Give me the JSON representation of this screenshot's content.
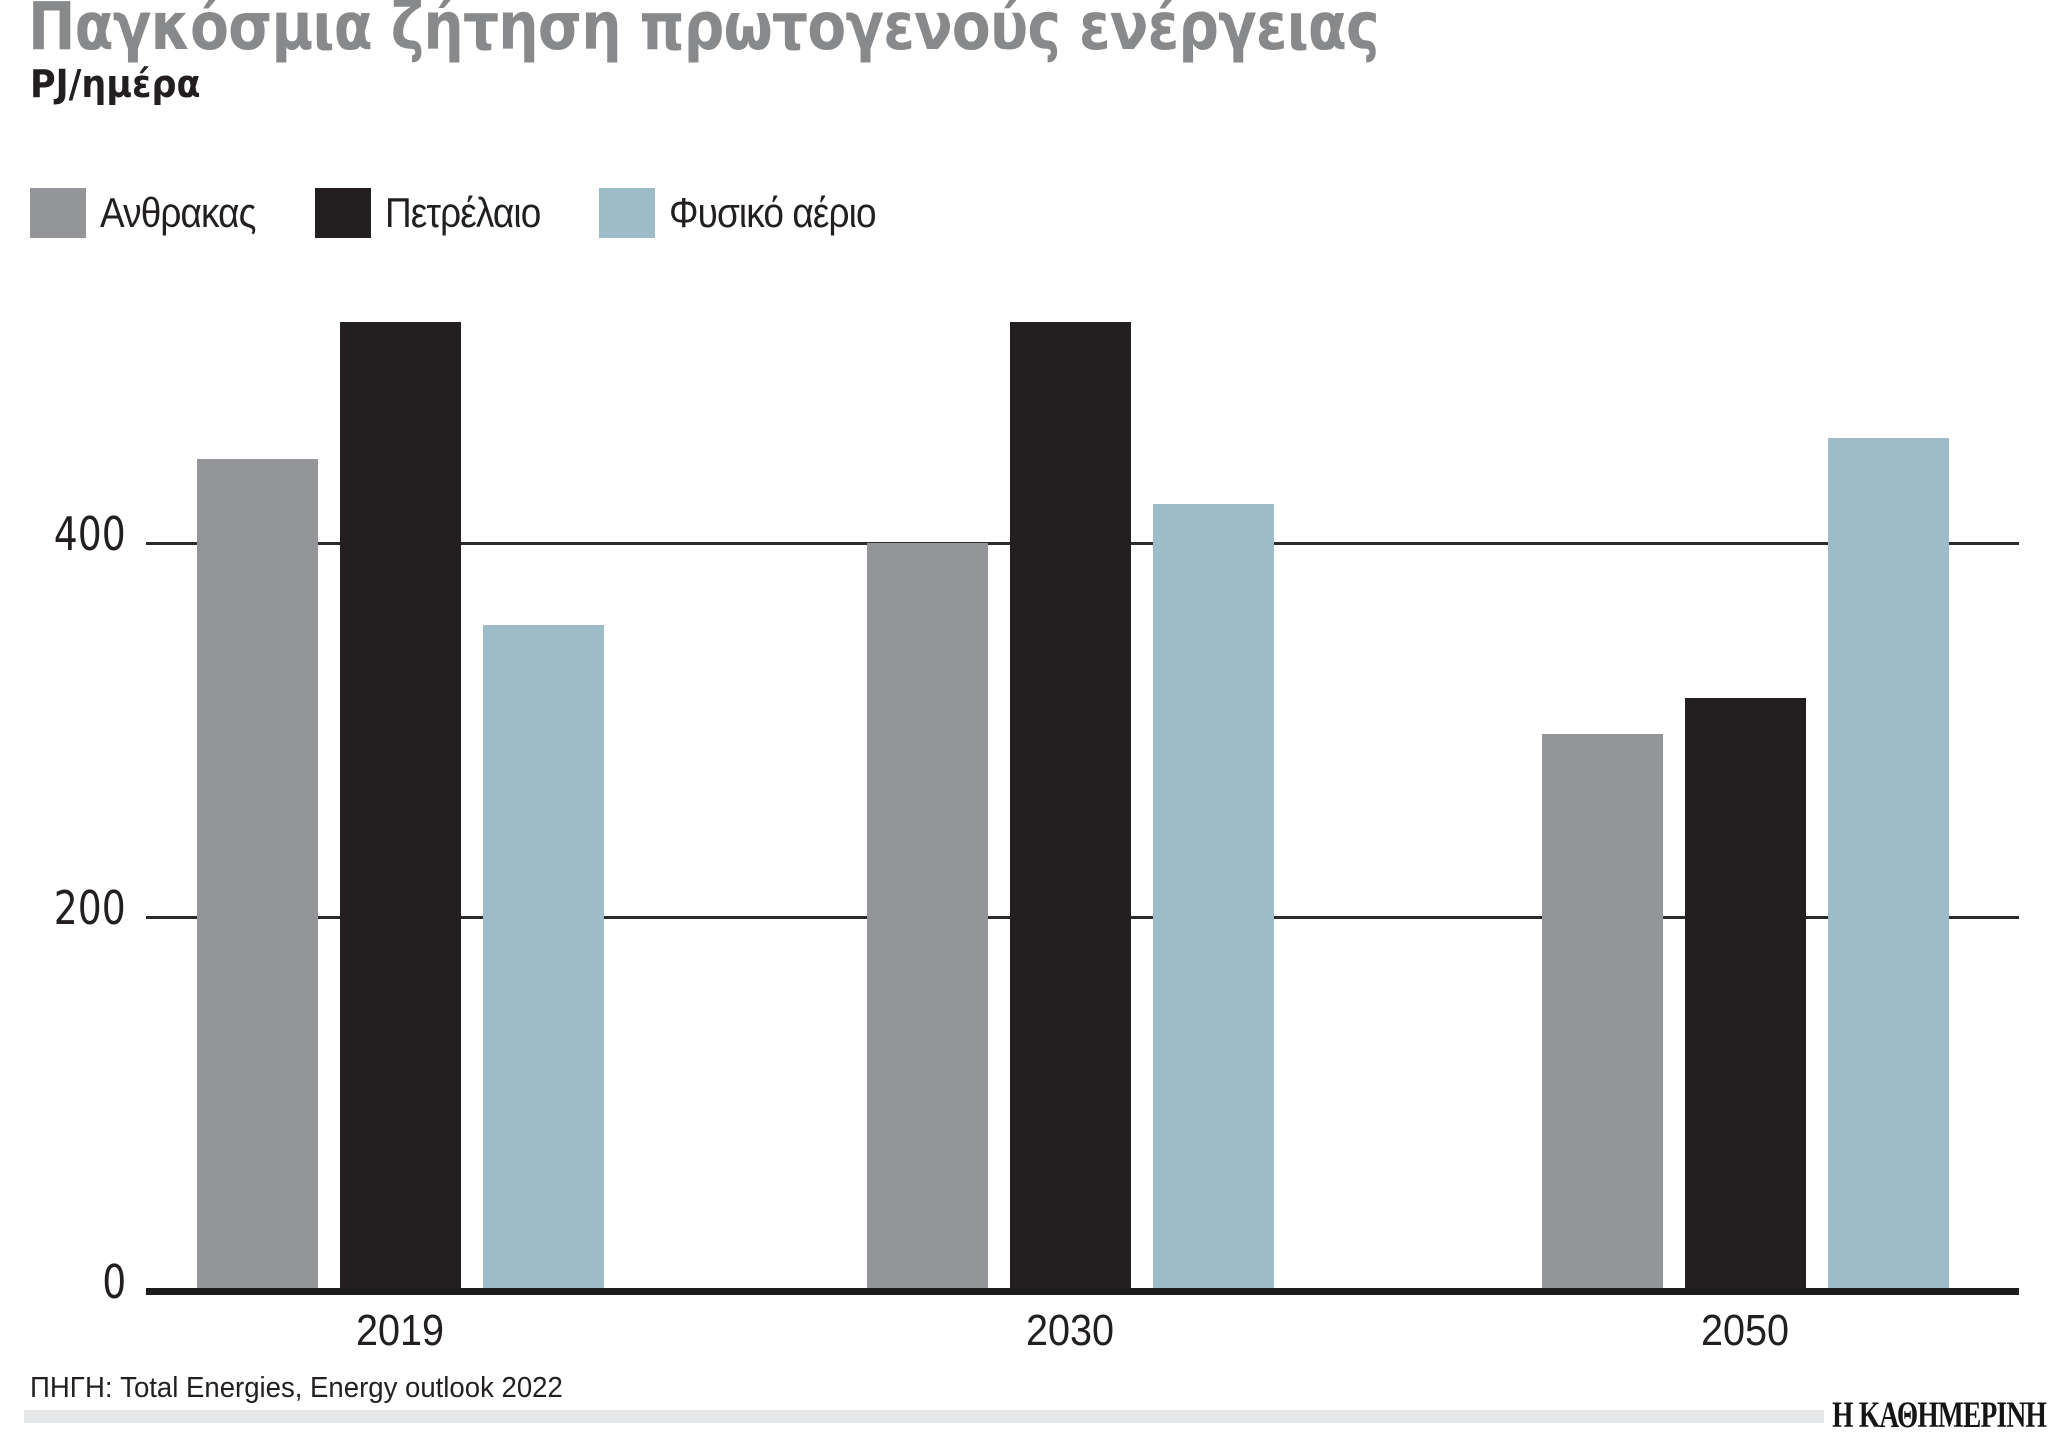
{
  "title": "Παγκόσμια ζήτηση πρωτογενούς ενέργειας",
  "unit_label": "PJ/ημέρα",
  "source": "ΠΗΓΗ: Total Energies, Energy outlook 2022",
  "publisher": "Η ΚΑΘΗΜΕΡΙΝΗ",
  "colors": {
    "coal": "#939598",
    "oil": "#231f20",
    "gas": "#9ebcc8",
    "title_gray": "#87898b",
    "text": "#231f20",
    "gridline": "#2b2b2b",
    "divider": "#e5e6e7"
  },
  "chart_data": {
    "type": "bar",
    "title": "Παγκόσμια ζήτηση πρωτογενούς ενέργειας",
    "ylabel": "PJ/ημέρα",
    "xlabel": "",
    "categories": [
      "2019",
      "2030",
      "2050"
    ],
    "series": [
      {
        "name": "Ανθρακας",
        "color": "#939598",
        "values": [
          445,
          400,
          298
        ]
      },
      {
        "name": "Πετρέλαιο",
        "color": "#231f20",
        "values": [
          518,
          518,
          317
        ]
      },
      {
        "name": "Φυσικό αέριο",
        "color": "#9ebcc8",
        "values": [
          356,
          421,
          456
        ]
      }
    ],
    "yticks": [
      0,
      200,
      400
    ],
    "ylim": [
      0,
      560
    ],
    "grid": true,
    "legend_position": "top-left"
  }
}
